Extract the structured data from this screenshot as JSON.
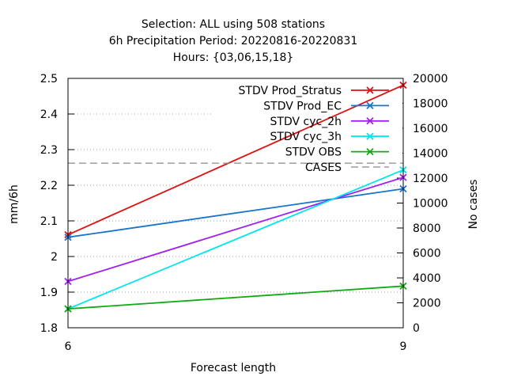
{
  "chart_data": {
    "type": "line",
    "title_lines": [
      "Selection: ALL using   508 stations",
      "6h Precipitation    Period: 20220816-20220831",
      "Hours: {03,06,15,18}"
    ],
    "xlabel": "Forecast length",
    "ylabel": "mm/6h",
    "y2label": "No cases",
    "x": [
      6,
      9
    ],
    "x_ticks": [
      "6",
      "9"
    ],
    "xlim": [
      6,
      9
    ],
    "ylim": [
      1.8,
      2.5
    ],
    "y_ticks": [
      "1.8",
      "1.9",
      "2",
      "2.1",
      "2.2",
      "2.3",
      "2.4",
      "2.5"
    ],
    "y2lim": [
      0,
      20000
    ],
    "y2_ticks": [
      "0",
      "2000",
      "4000",
      "6000",
      "8000",
      "10000",
      "12000",
      "14000",
      "16000",
      "18000",
      "20000"
    ],
    "grid": true,
    "legend_position": "top-right",
    "series": [
      {
        "name": "STDV Prod_Stratus",
        "axis": "left",
        "color": "#dd1111",
        "marker": "x",
        "values": [
          2.061,
          2.481
        ]
      },
      {
        "name": "STDV Prod_EC",
        "axis": "left",
        "color": "#1874cd",
        "marker": "x",
        "values": [
          2.054,
          2.19
        ]
      },
      {
        "name": "STDV cyc_2h",
        "axis": "left",
        "color": "#a020f0",
        "marker": "x",
        "values": [
          1.93,
          2.222
        ]
      },
      {
        "name": "STDV cyc_3h",
        "axis": "left",
        "color": "#00e5ee",
        "marker": "x",
        "values": [
          1.853,
          2.243
        ]
      },
      {
        "name": "STDV OBS",
        "axis": "left",
        "color": "#11aa11",
        "marker": "x",
        "values": [
          1.853,
          1.917
        ]
      },
      {
        "name": "CASES",
        "axis": "right",
        "color": "#888888",
        "dash": true,
        "values": [
          13200,
          13200
        ]
      }
    ]
  }
}
